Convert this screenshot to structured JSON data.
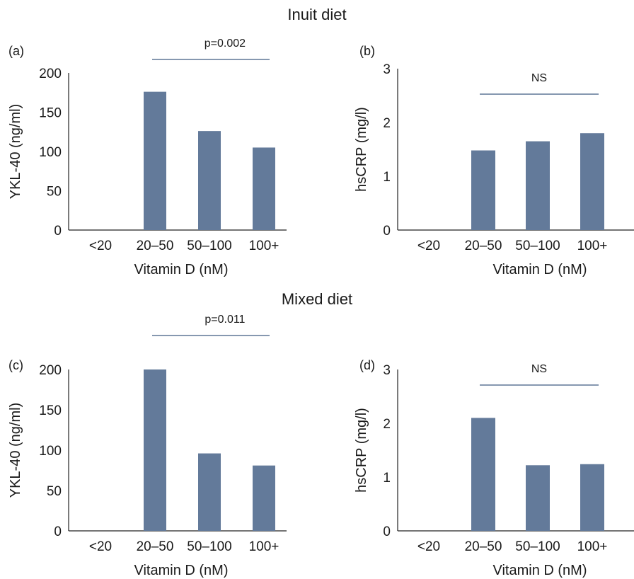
{
  "sections": [
    {
      "title": "Inuit diet"
    },
    {
      "title": "Mixed diet"
    }
  ],
  "colors": {
    "bar": "#637a9a",
    "line": "#3d5a80",
    "axis": "#222222"
  },
  "chart_data": [
    {
      "panel": "(a)",
      "type": "bar",
      "section": "Inuit diet",
      "categories": [
        "<20",
        "20–50",
        "50–100",
        "100+"
      ],
      "values": [
        null,
        176,
        126,
        105
      ],
      "xlabel": "Vitamin D (nM)",
      "ylabel": "YKL-40 (ng/ml)",
      "ylim": [
        0,
        200
      ],
      "yticks": [
        0,
        50,
        100,
        150,
        200
      ],
      "annotation": {
        "text": "p=0.002",
        "from_category": "20–50",
        "to_category": "100+"
      }
    },
    {
      "panel": "(b)",
      "type": "bar",
      "section": "Inuit diet",
      "categories": [
        "<20",
        "20–50",
        "50–100",
        "100+"
      ],
      "values": [
        null,
        1.48,
        1.65,
        1.8
      ],
      "xlabel": "Vitamin D (nM)",
      "ylabel": "hsCRP (mg/l)",
      "ylim": [
        0,
        3
      ],
      "yticks": [
        0,
        1,
        2,
        3
      ],
      "annotation": {
        "text": "NS",
        "from_category": "20–50",
        "to_category": "100+"
      }
    },
    {
      "panel": "(c)",
      "type": "bar",
      "section": "Mixed diet",
      "categories": [
        "<20",
        "20–50",
        "50–100",
        "100+"
      ],
      "values": [
        null,
        200,
        96,
        81
      ],
      "xlabel": "Vitamin D (nM)",
      "ylabel": "YKL-40 (ng/ml)",
      "ylim": [
        0,
        200
      ],
      "yticks": [
        0,
        50,
        100,
        150,
        200
      ],
      "annotation": {
        "text": "p=0.011",
        "from_category": "20–50",
        "to_category": "100+"
      }
    },
    {
      "panel": "(d)",
      "type": "bar",
      "section": "Mixed diet",
      "categories": [
        "<20",
        "20–50",
        "50–100",
        "100+"
      ],
      "values": [
        null,
        2.1,
        1.22,
        1.24
      ],
      "xlabel": "Vitamin D (nM)",
      "ylabel": "hsCRP (mg/l)",
      "ylim": [
        0,
        3
      ],
      "yticks": [
        0,
        1,
        2,
        3
      ],
      "annotation": {
        "text": "NS",
        "from_category": "20–50",
        "to_category": "100+"
      }
    }
  ]
}
